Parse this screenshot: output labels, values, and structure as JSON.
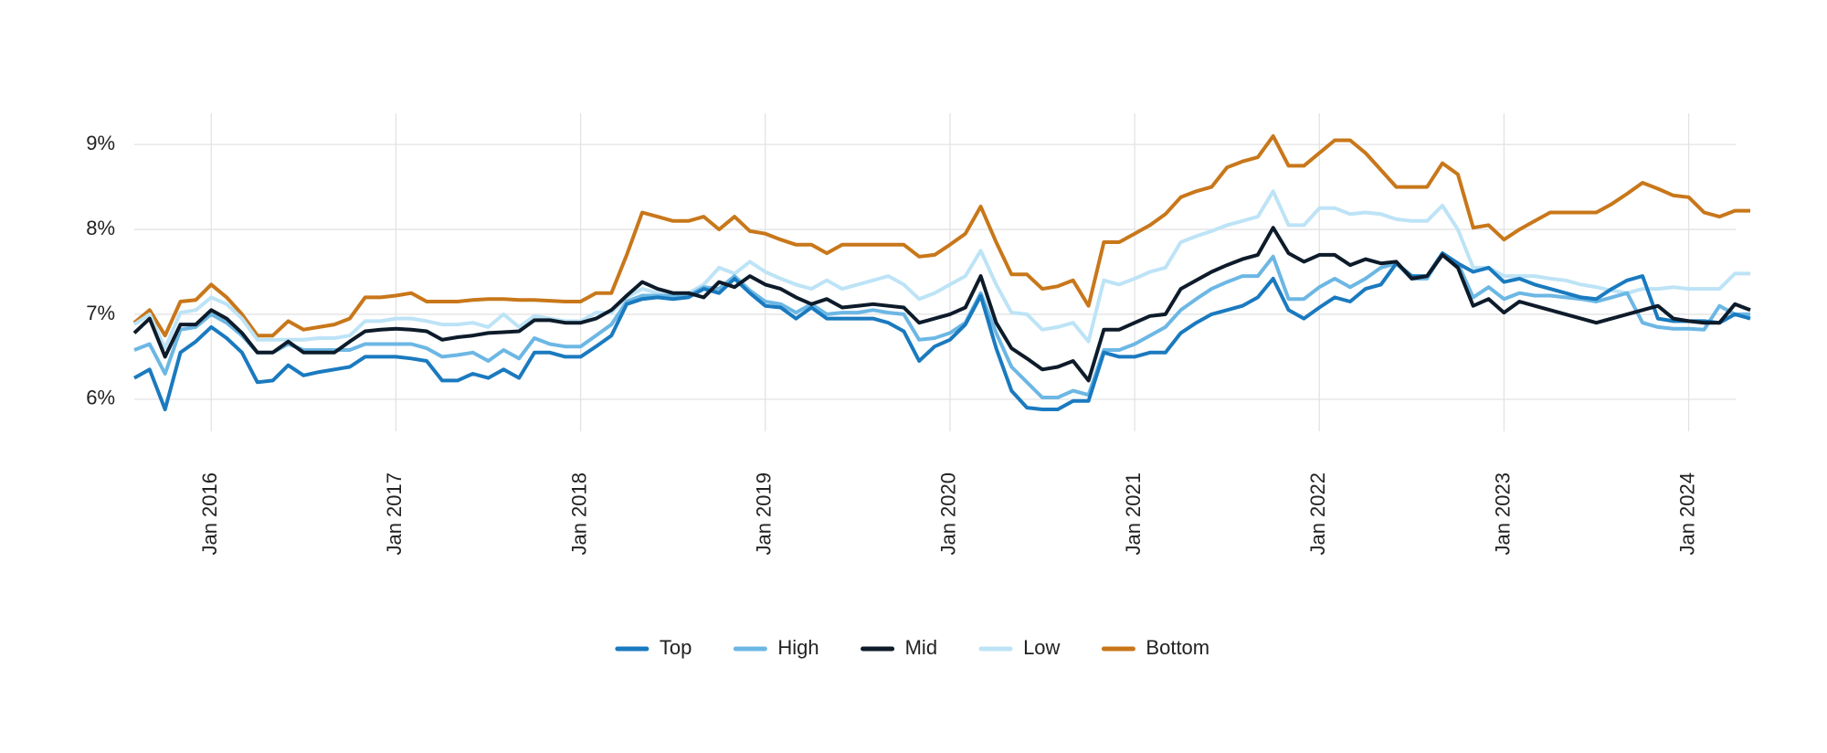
{
  "chart_data": {
    "type": "line",
    "x": [
      "2015-08",
      "2015-09",
      "2015-10",
      "2015-11",
      "2015-12",
      "2016-01",
      "2016-02",
      "2016-03",
      "2016-04",
      "2016-05",
      "2016-06",
      "2016-07",
      "2016-08",
      "2016-09",
      "2016-10",
      "2016-11",
      "2016-12",
      "2017-01",
      "2017-02",
      "2017-03",
      "2017-04",
      "2017-05",
      "2017-06",
      "2017-07",
      "2017-08",
      "2017-09",
      "2017-10",
      "2017-11",
      "2017-12",
      "2018-01",
      "2018-02",
      "2018-03",
      "2018-04",
      "2018-05",
      "2018-06",
      "2018-07",
      "2018-08",
      "2018-09",
      "2018-10",
      "2018-11",
      "2018-12",
      "2019-01",
      "2019-02",
      "2019-03",
      "2019-04",
      "2019-05",
      "2019-06",
      "2019-07",
      "2019-08",
      "2019-09",
      "2019-10",
      "2019-11",
      "2019-12",
      "2020-01",
      "2020-02",
      "2020-03",
      "2020-04",
      "2020-05",
      "2020-06",
      "2020-07",
      "2020-08",
      "2020-09",
      "2020-10",
      "2020-11",
      "2020-12",
      "2021-01",
      "2021-02",
      "2021-03",
      "2021-04",
      "2021-05",
      "2021-06",
      "2021-07",
      "2021-08",
      "2021-09",
      "2021-10",
      "2021-11",
      "2021-12",
      "2022-01",
      "2022-02",
      "2022-03",
      "2022-04",
      "2022-05",
      "2022-06",
      "2022-07",
      "2022-08",
      "2022-09",
      "2022-10",
      "2022-11",
      "2022-12",
      "2023-01",
      "2023-02",
      "2023-03",
      "2023-04",
      "2023-05",
      "2023-06",
      "2023-07",
      "2023-08",
      "2023-09",
      "2023-10",
      "2023-11",
      "2023-12",
      "2024-01",
      "2024-02",
      "2024-03",
      "2024-04",
      "2024-05"
    ],
    "xlim": [
      "2015-08",
      "2024-05"
    ],
    "xticks": [
      {
        "value": "2016-01",
        "label": "Jan 2016"
      },
      {
        "value": "2017-01",
        "label": "Jan 2017"
      },
      {
        "value": "2018-01",
        "label": "Jan 2018"
      },
      {
        "value": "2019-01",
        "label": "Jan 2019"
      },
      {
        "value": "2020-01",
        "label": "Jan 2020"
      },
      {
        "value": "2021-01",
        "label": "Jan 2021"
      },
      {
        "value": "2022-01",
        "label": "Jan 2022"
      },
      {
        "value": "2023-01",
        "label": "Jan 2023"
      },
      {
        "value": "2024-01",
        "label": "Jan 2024"
      }
    ],
    "ylim": [
      5.6,
      9.4
    ],
    "yticks": [
      {
        "value": 6,
        "label": "6%"
      },
      {
        "value": 7,
        "label": "7%"
      },
      {
        "value": 8,
        "label": "8%"
      },
      {
        "value": 9,
        "label": "9%"
      }
    ],
    "grid": true,
    "legend": "bottom",
    "series": [
      {
        "name": "Top",
        "color": "#1a7abf",
        "values": [
          6.25,
          6.35,
          5.88,
          6.55,
          6.68,
          6.85,
          6.72,
          6.55,
          6.2,
          6.22,
          6.4,
          6.28,
          6.32,
          6.35,
          6.38,
          6.5,
          6.5,
          6.5,
          6.48,
          6.45,
          6.22,
          6.22,
          6.3,
          6.25,
          6.35,
          6.25,
          6.55,
          6.55,
          6.5,
          6.5,
          6.62,
          6.75,
          7.12,
          7.18,
          7.2,
          7.18,
          7.2,
          7.3,
          7.25,
          7.42,
          7.25,
          7.1,
          7.08,
          6.95,
          7.08,
          6.95,
          6.95,
          6.95,
          6.95,
          6.9,
          6.8,
          6.45,
          6.62,
          6.7,
          6.88,
          7.22,
          6.6,
          6.1,
          5.9,
          5.88,
          5.88,
          5.98,
          5.98,
          6.55,
          6.5,
          6.5,
          6.55,
          6.55,
          6.78,
          6.9,
          7.0,
          7.05,
          7.1,
          7.2,
          7.42,
          7.05,
          6.95,
          7.08,
          7.2,
          7.15,
          7.3,
          7.35,
          7.6,
          7.45,
          7.45,
          7.72,
          7.6,
          7.5,
          7.55,
          7.38,
          7.42,
          7.35,
          7.3,
          7.25,
          7.2,
          7.18,
          7.3,
          7.4,
          7.45,
          6.95,
          6.92,
          6.92,
          6.92,
          6.9,
          7.0,
          6.95
        ]
      },
      {
        "name": "High",
        "color": "#6cb7e4",
        "values": [
          6.58,
          6.65,
          6.3,
          6.82,
          6.85,
          7.0,
          6.9,
          6.75,
          6.55,
          6.55,
          6.65,
          6.58,
          6.58,
          6.58,
          6.58,
          6.65,
          6.65,
          6.65,
          6.65,
          6.6,
          6.5,
          6.52,
          6.55,
          6.45,
          6.58,
          6.48,
          6.72,
          6.65,
          6.62,
          6.62,
          6.75,
          6.88,
          7.15,
          7.22,
          7.22,
          7.22,
          7.22,
          7.32,
          7.3,
          7.45,
          7.28,
          7.15,
          7.12,
          7.02,
          7.12,
          7.0,
          7.02,
          7.02,
          7.05,
          7.02,
          7.0,
          6.7,
          6.72,
          6.78,
          6.9,
          7.25,
          6.78,
          6.38,
          6.2,
          6.02,
          6.02,
          6.1,
          6.05,
          6.58,
          6.58,
          6.65,
          6.75,
          6.85,
          7.05,
          7.18,
          7.3,
          7.38,
          7.45,
          7.45,
          7.68,
          7.18,
          7.18,
          7.32,
          7.42,
          7.32,
          7.42,
          7.55,
          7.6,
          7.42,
          7.42,
          7.72,
          7.6,
          7.2,
          7.32,
          7.18,
          7.25,
          7.22,
          7.22,
          7.2,
          7.18,
          7.15,
          7.2,
          7.25,
          6.9,
          6.85,
          6.83,
          6.83,
          6.82,
          7.1,
          7.0,
          7.0
        ]
      },
      {
        "name": "Mid",
        "color": "#0d1b2a",
        "values": [
          6.78,
          6.95,
          6.5,
          6.88,
          6.88,
          7.05,
          6.95,
          6.78,
          6.55,
          6.55,
          6.68,
          6.55,
          6.55,
          6.55,
          6.68,
          6.8,
          6.82,
          6.83,
          6.82,
          6.8,
          6.7,
          6.73,
          6.75,
          6.78,
          6.79,
          6.8,
          6.93,
          6.93,
          6.9,
          6.9,
          6.95,
          7.05,
          7.22,
          7.38,
          7.3,
          7.25,
          7.25,
          7.2,
          7.38,
          7.32,
          7.45,
          7.35,
          7.3,
          7.2,
          7.12,
          7.18,
          7.08,
          7.1,
          7.12,
          7.1,
          7.08,
          6.9,
          6.95,
          7.0,
          7.08,
          7.45,
          6.9,
          6.6,
          6.48,
          6.35,
          6.38,
          6.45,
          6.22,
          6.82,
          6.82,
          6.9,
          6.98,
          7.0,
          7.3,
          7.4,
          7.5,
          7.58,
          7.65,
          7.7,
          8.02,
          7.72,
          7.62,
          7.7,
          7.7,
          7.58,
          7.65,
          7.6,
          7.62,
          7.42,
          7.45,
          7.7,
          7.55,
          7.1,
          7.18,
          7.02,
          7.15,
          7.1,
          7.05,
          7.0,
          6.95,
          6.9,
          6.95,
          7.0,
          7.05,
          7.1,
          6.95,
          6.92,
          6.9,
          6.9,
          7.12,
          7.05
        ]
      },
      {
        "name": "Low",
        "color": "#bde3f6",
        "values": [
          6.88,
          7.0,
          6.6,
          7.02,
          7.05,
          7.2,
          7.12,
          6.95,
          6.7,
          6.7,
          6.7,
          6.7,
          6.72,
          6.72,
          6.75,
          6.92,
          6.92,
          6.95,
          6.95,
          6.92,
          6.88,
          6.88,
          6.9,
          6.85,
          7.0,
          6.85,
          6.98,
          6.95,
          6.92,
          6.92,
          7.02,
          7.02,
          7.2,
          7.3,
          7.25,
          7.2,
          7.25,
          7.35,
          7.55,
          7.48,
          7.62,
          7.5,
          7.42,
          7.35,
          7.3,
          7.4,
          7.3,
          7.35,
          7.4,
          7.45,
          7.35,
          7.18,
          7.25,
          7.35,
          7.45,
          7.75,
          7.35,
          7.02,
          7.0,
          6.82,
          6.85,
          6.9,
          6.68,
          7.4,
          7.35,
          7.42,
          7.5,
          7.55,
          7.85,
          7.92,
          7.98,
          8.05,
          8.1,
          8.15,
          8.45,
          8.05,
          8.05,
          8.25,
          8.25,
          8.18,
          8.2,
          8.18,
          8.12,
          8.1,
          8.1,
          8.28,
          8.0,
          7.55,
          7.55,
          7.45,
          7.45,
          7.45,
          7.42,
          7.4,
          7.35,
          7.32,
          7.28,
          7.25,
          7.3,
          7.3,
          7.32,
          7.3,
          7.3,
          7.3,
          7.48,
          7.48
        ]
      },
      {
        "name": "Bottom",
        "color": "#c8771a",
        "values": [
          6.9,
          7.05,
          6.75,
          7.15,
          7.17,
          7.35,
          7.2,
          7.0,
          6.75,
          6.75,
          6.92,
          6.82,
          6.85,
          6.88,
          6.95,
          7.2,
          7.2,
          7.22,
          7.25,
          7.15,
          7.15,
          7.15,
          7.17,
          7.18,
          7.18,
          7.17,
          7.17,
          7.16,
          7.15,
          7.15,
          7.25,
          7.25,
          7.7,
          8.2,
          8.15,
          8.1,
          8.1,
          8.15,
          8.0,
          8.15,
          7.98,
          7.95,
          7.88,
          7.82,
          7.82,
          7.72,
          7.82,
          7.82,
          7.82,
          7.82,
          7.82,
          7.68,
          7.7,
          7.82,
          7.95,
          8.27,
          7.85,
          7.47,
          7.47,
          7.3,
          7.33,
          7.4,
          7.1,
          7.85,
          7.85,
          7.95,
          8.05,
          8.18,
          8.38,
          8.45,
          8.5,
          8.73,
          8.8,
          8.85,
          9.1,
          8.75,
          8.75,
          8.9,
          9.05,
          9.05,
          8.9,
          8.7,
          8.5,
          8.5,
          8.5,
          8.78,
          8.65,
          8.02,
          8.05,
          7.88,
          8.0,
          8.1,
          8.2,
          8.2,
          8.2,
          8.2,
          8.3,
          8.42,
          8.55,
          8.48,
          8.4,
          8.38,
          8.2,
          8.15,
          8.22,
          8.22
        ]
      }
    ]
  }
}
